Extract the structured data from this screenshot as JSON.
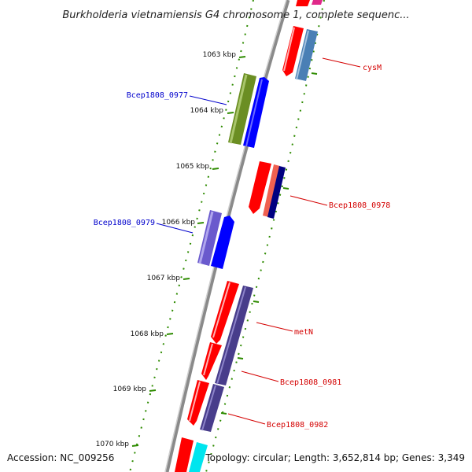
{
  "title": "Burkholderia vietnamiensis G4 chromosome 1, complete sequenc...",
  "footer": {
    "accession": "Accession: NC_009256",
    "topology": "Topology: circular; Length: 3,652,814 bp; Genes: 3,349"
  },
  "ticks": [
    "1063 kbp",
    "1064 kbp",
    "1065 kbp",
    "1066 kbp",
    "1067 kbp",
    "1068 kbp",
    "1069 kbp",
    "1070 kbp"
  ],
  "labels": [
    {
      "text": "cysM",
      "color": "#d40000"
    },
    {
      "text": "Bcep1808_0977",
      "color": "#0000cc"
    },
    {
      "text": "Bcep1808_0978",
      "color": "#d40000"
    },
    {
      "text": "Bcep1808_0979",
      "color": "#0000cc"
    },
    {
      "text": "metN",
      "color": "#d40000"
    },
    {
      "text": "Bcep1808_0981",
      "color": "#d40000"
    },
    {
      "text": "Bcep1808_0982",
      "color": "#d40000"
    }
  ],
  "colors": {
    "backbone": "#888888",
    "tick": "#2e8b00",
    "cds_forward": "#ff0000",
    "cds_reverse": "#0000ff"
  }
}
